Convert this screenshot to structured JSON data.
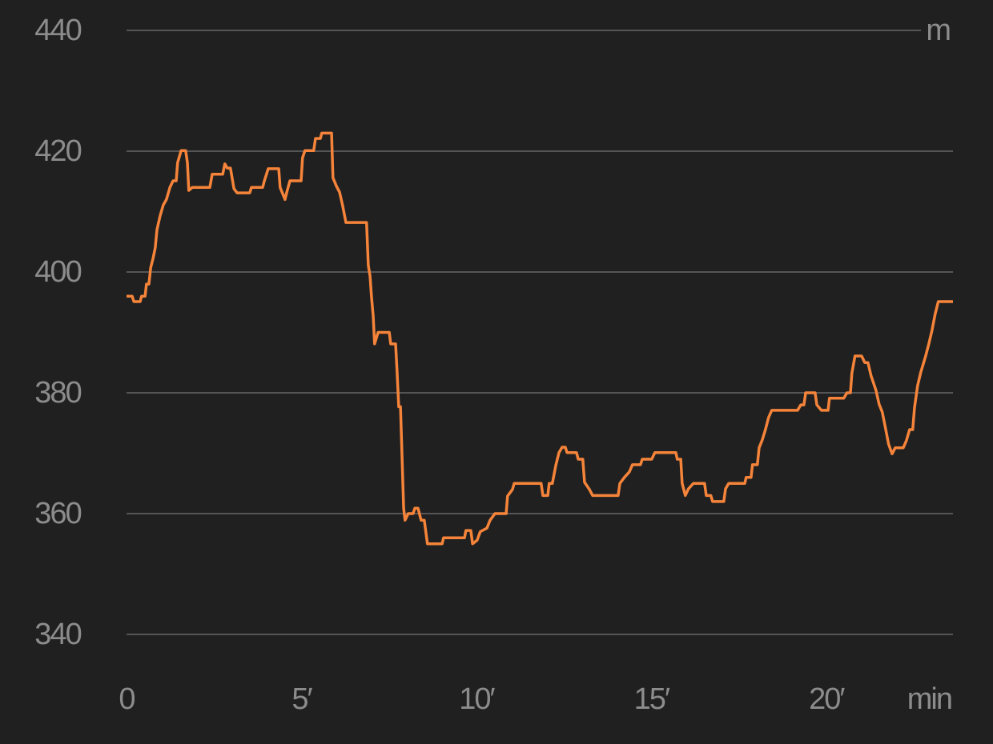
{
  "chart_data": {
    "type": "line",
    "y_unit": "m",
    "x_unit": "min",
    "color": "#f5843a",
    "grid": true,
    "xlim": [
      0,
      23.62
    ],
    "ylim": [
      340,
      440
    ],
    "yticks": [
      340,
      360,
      380,
      400,
      420,
      440
    ],
    "xticks": [
      0,
      {
        "value": 5,
        "label": "5′"
      },
      {
        "value": 10,
        "label": "10′"
      },
      {
        "value": 15,
        "label": "15′"
      },
      {
        "value": 20,
        "label": "20′"
      }
    ],
    "x": [
      0,
      0.16,
      0.21,
      0.39,
      0.43,
      0.53,
      0.57,
      0.64,
      0.69,
      0.76,
      0.82,
      0.87,
      0.96,
      1.05,
      1.14,
      1.24,
      1.33,
      1.42,
      1.46,
      1.56,
      1.69,
      1.74,
      1.78,
      1.88,
      2.38,
      2.45,
      2.75,
      2.81,
      2.88,
      2.97,
      3.07,
      3.16,
      3.52,
      3.57,
      3.89,
      3.94,
      4.05,
      4.35,
      4.39,
      4.53,
      4.58,
      4.67,
      4.99,
      5.03,
      5.1,
      5.35,
      5.4,
      5.54,
      5.58,
      5.86,
      5.9,
      6.0,
      6.09,
      6.18,
      6.27,
      6.86,
      6.91,
      6.96,
      7.0,
      7.05,
      7.09,
      7.19,
      7.51,
      7.55,
      7.69,
      7.73,
      7.78,
      7.83,
      7.92,
      7.96,
      8.05,
      8.19,
      8.24,
      8.33,
      8.42,
      8.51,
      8.6,
      9.02,
      9.06,
      9.66,
      9.7,
      9.84,
      9.89,
      10.02,
      10.11,
      10.3,
      10.39,
      10.53,
      10.85,
      10.89,
      11.03,
      11.08,
      11.85,
      11.9,
      12.04,
      12.08,
      12.17,
      12.27,
      12.36,
      12.45,
      12.54,
      12.59,
      12.86,
      12.91,
      13.04,
      13.09,
      13.23,
      13.32,
      14.05,
      14.1,
      14.23,
      14.37,
      14.46,
      14.69,
      14.74,
      15.01,
      15.1,
      15.7,
      15.74,
      15.84,
      15.88,
      15.97,
      16.06,
      16.2,
      16.52,
      16.57,
      16.7,
      16.75,
      17.07,
      17.12,
      17.21,
      17.67,
      17.71,
      17.85,
      17.89,
      18.03,
      18.08,
      18.17,
      18.26,
      18.35,
      18.44,
      19.18,
      19.27,
      19.36,
      19.41,
      19.68,
      19.73,
      19.86,
      20.05,
      20.09,
      20.5,
      20.59,
      20.69,
      20.73,
      20.82,
      21.01,
      21.1,
      21.19,
      21.28,
      21.42,
      21.51,
      21.6,
      21.69,
      21.78,
      21.88,
      21.97,
      22.2,
      22.29,
      22.38,
      22.47,
      22.52,
      22.61,
      22.7,
      22.84,
      22.93,
      23.02,
      23.11,
      23.2,
      23.62
    ],
    "values": [
      396,
      396,
      395.1,
      395.1,
      396,
      396,
      398,
      398,
      400.7,
      402.3,
      404,
      407,
      409.3,
      411.1,
      412,
      414,
      415.1,
      415.1,
      418.1,
      420.1,
      420.1,
      418.1,
      413.5,
      414,
      414,
      416.2,
      416.2,
      417.9,
      417.2,
      417.2,
      413.8,
      413.1,
      413.1,
      414,
      414,
      415.1,
      417.1,
      417.1,
      414,
      412,
      413.2,
      415.1,
      415.1,
      418.9,
      420.1,
      420.1,
      422.1,
      422.1,
      423,
      423,
      415.6,
      414.2,
      413.2,
      410.9,
      408.2,
      408.2,
      401.1,
      399.3,
      396,
      392.7,
      388.1,
      390,
      390,
      388.1,
      388.1,
      383.8,
      377.7,
      377.7,
      360.9,
      358.9,
      360,
      360,
      360.9,
      360.9,
      358.9,
      358.9,
      355,
      355,
      356,
      356,
      357.2,
      357.2,
      355,
      355.6,
      357,
      357.6,
      358.9,
      360,
      360,
      362.9,
      364,
      365,
      365,
      363,
      363,
      365,
      365,
      368,
      370.1,
      371,
      371,
      370.1,
      370.1,
      369,
      369,
      365.2,
      364,
      363,
      363,
      365,
      366,
      366.9,
      368.1,
      368.1,
      369,
      369,
      370.1,
      370.1,
      369,
      369,
      365,
      363,
      364.1,
      365,
      365,
      363,
      363,
      362,
      362,
      364.1,
      365,
      365,
      366,
      366,
      368.1,
      368.1,
      370.9,
      372.2,
      373.9,
      375.9,
      377.1,
      377.1,
      378,
      378,
      380,
      380,
      378,
      377.1,
      377.1,
      379.1,
      379.1,
      380,
      380,
      383.2,
      386.1,
      386.1,
      385,
      385,
      382.8,
      380.4,
      378.1,
      376.8,
      374.2,
      371.5,
      369.9,
      370.9,
      370.9,
      372.1,
      373.9,
      373.9,
      377.5,
      381.2,
      383.4,
      386.1,
      388.1,
      390.3,
      393,
      395.1,
      395.1
    ]
  }
}
